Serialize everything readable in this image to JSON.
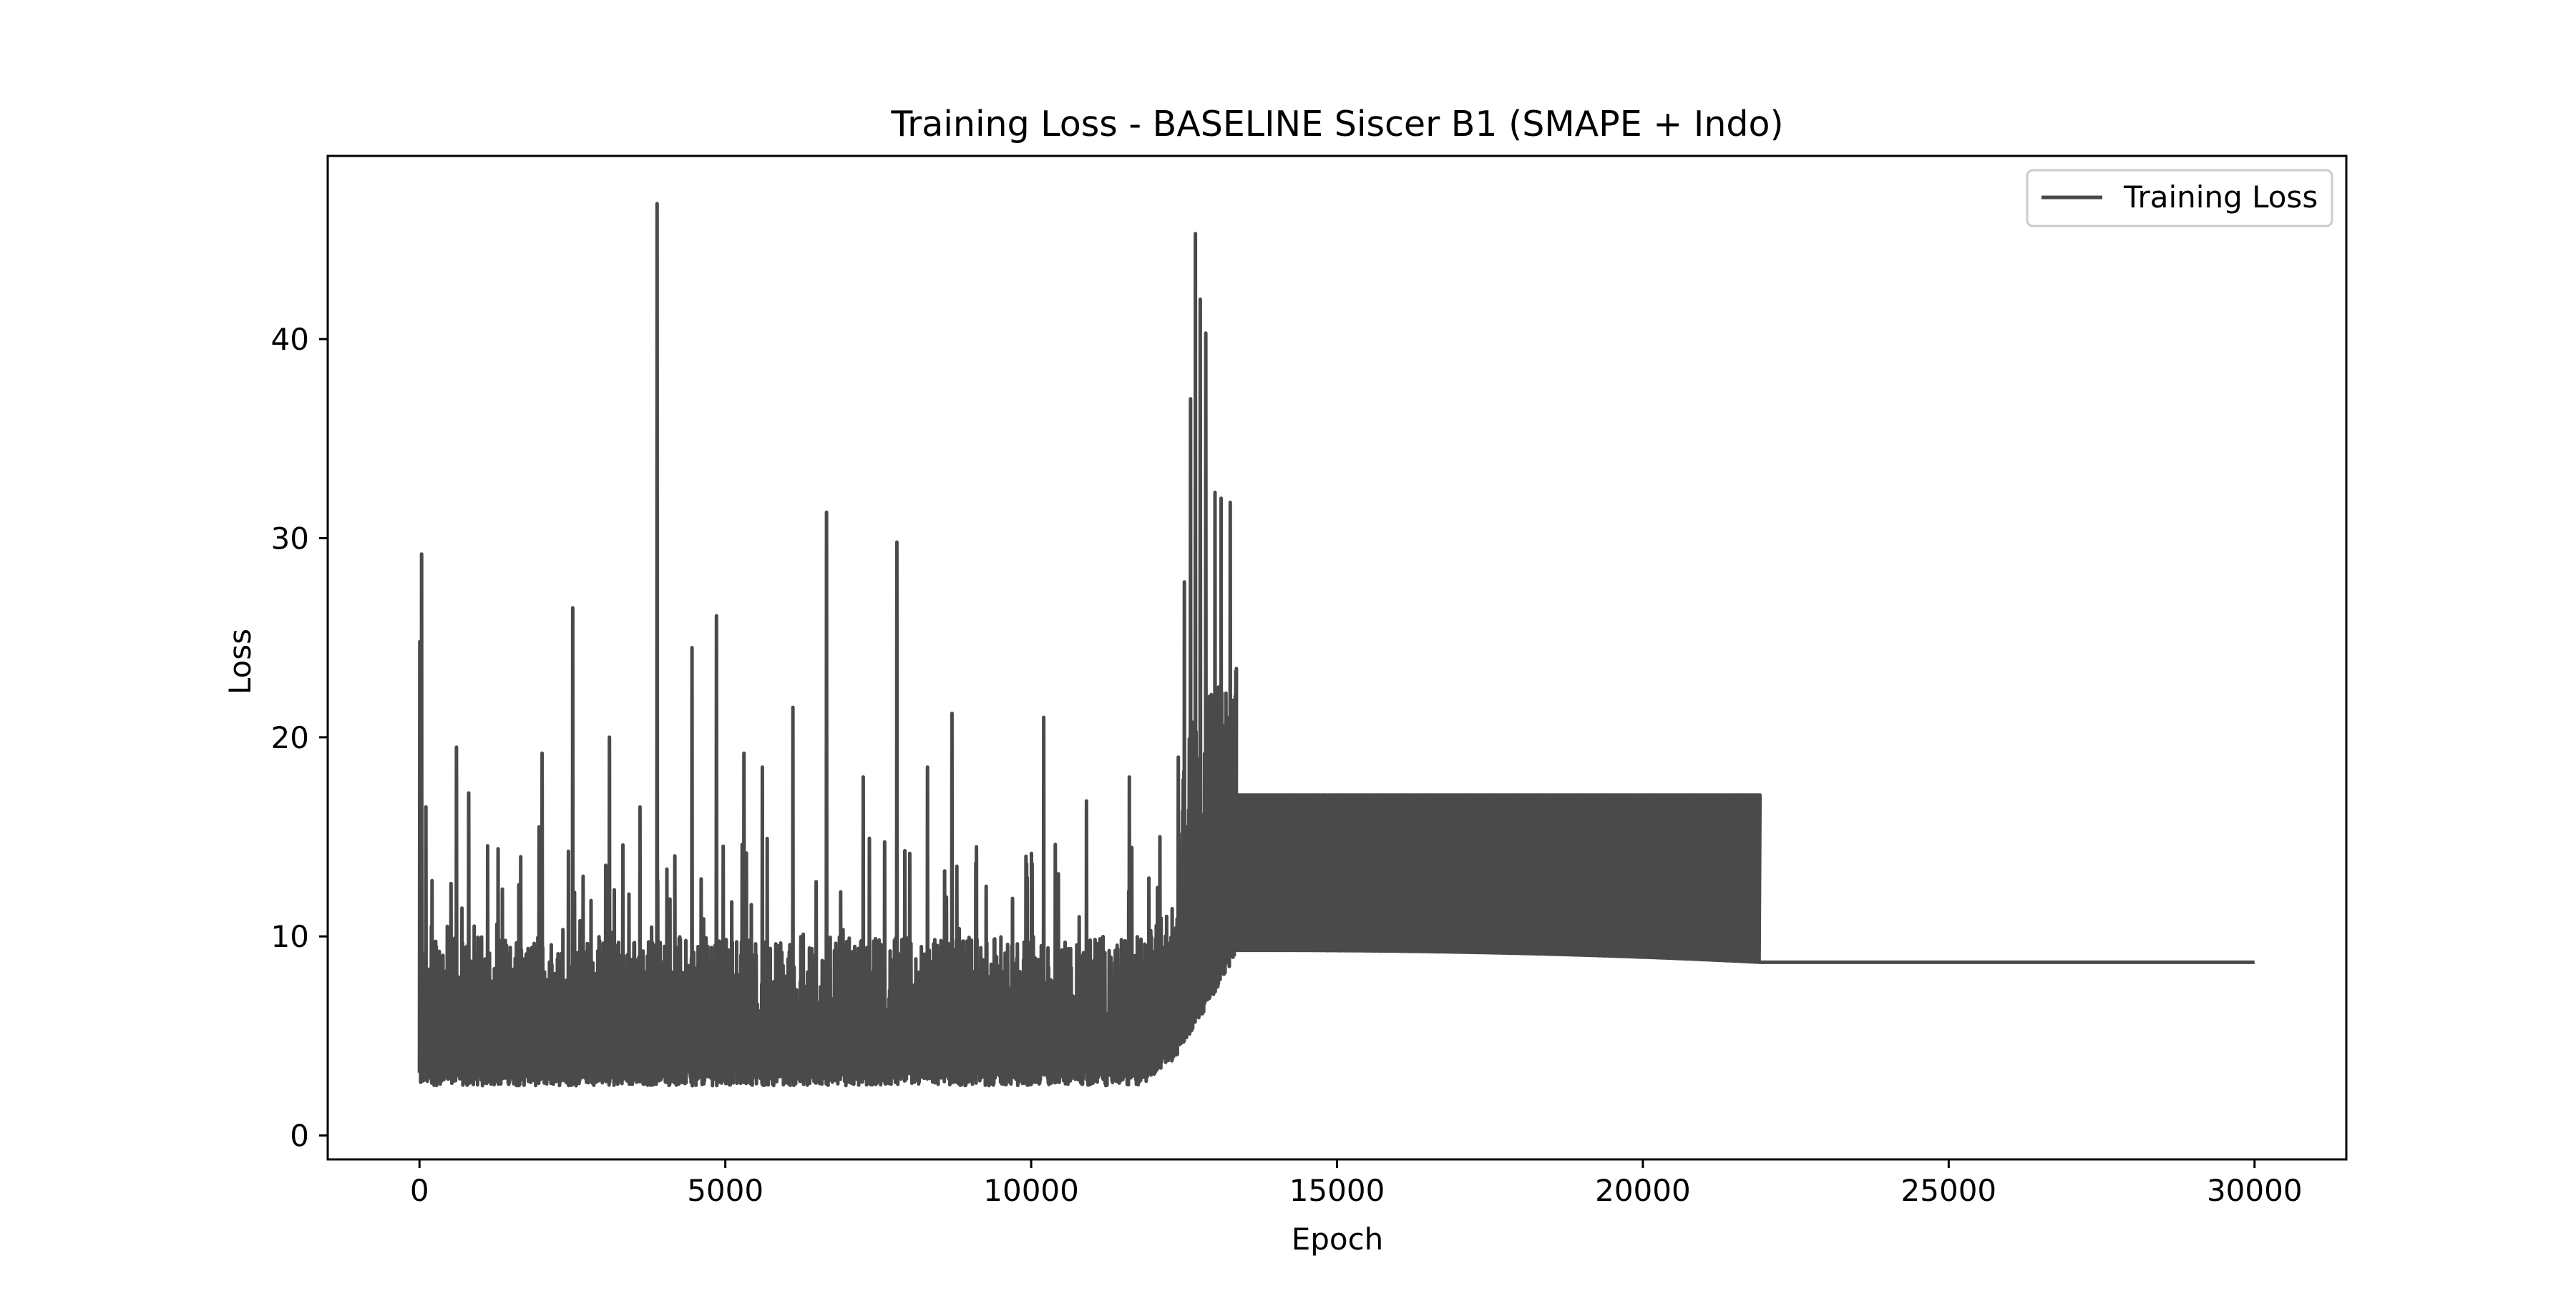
{
  "chart_data": {
    "type": "line",
    "title": "Training Loss - BASELINE Siscer B1 (SMAPE + Indo)",
    "xlabel": "Epoch",
    "ylabel": "Loss",
    "xlim": [
      -1500,
      31500
    ],
    "ylim": [
      -1.2,
      49.2
    ],
    "xticks": [
      0,
      5000,
      10000,
      15000,
      20000,
      25000,
      30000
    ],
    "yticks": [
      0,
      10,
      20,
      30,
      40
    ],
    "grid": false,
    "legend": {
      "position": "top-right",
      "entries": [
        "Training Loss"
      ]
    },
    "colors": {
      "line": "#4a4a4a",
      "axes": "#000000",
      "background": "#ffffff"
    },
    "series": [
      {
        "name": "Training Loss",
        "description_points": {
          "phase1_epoch_range": [
            0,
            12400
          ],
          "phase1_base_band": [
            2.5,
            8.0
          ],
          "spikes": [
            {
              "x": 0,
              "y": 24.8
            },
            {
              "x": 30,
              "y": 29.2
            },
            {
              "x": 100,
              "y": 16.5
            },
            {
              "x": 200,
              "y": 12.8
            },
            {
              "x": 450,
              "y": 10.5
            },
            {
              "x": 600,
              "y": 19.5
            },
            {
              "x": 800,
              "y": 17.2
            },
            {
              "x": 1650,
              "y": 14.0
            },
            {
              "x": 1950,
              "y": 15.5
            },
            {
              "x": 2000,
              "y": 19.2
            },
            {
              "x": 2500,
              "y": 26.5
            },
            {
              "x": 2800,
              "y": 11.8
            },
            {
              "x": 3100,
              "y": 20.0
            },
            {
              "x": 3600,
              "y": 16.5
            },
            {
              "x": 3880,
              "y": 46.8
            },
            {
              "x": 4450,
              "y": 24.5
            },
            {
              "x": 4850,
              "y": 26.1
            },
            {
              "x": 5300,
              "y": 19.2
            },
            {
              "x": 5600,
              "y": 18.5
            },
            {
              "x": 6100,
              "y": 21.5
            },
            {
              "x": 6650,
              "y": 31.3
            },
            {
              "x": 7250,
              "y": 18.0
            },
            {
              "x": 7800,
              "y": 29.8
            },
            {
              "x": 8300,
              "y": 18.5
            },
            {
              "x": 8700,
              "y": 21.2
            },
            {
              "x": 9100,
              "y": 14.5
            },
            {
              "x": 10200,
              "y": 21.0
            },
            {
              "x": 10900,
              "y": 16.8
            },
            {
              "x": 11600,
              "y": 18.0
            },
            {
              "x": 12100,
              "y": 15.0
            }
          ],
          "transition_spikes": [
            {
              "x": 12400,
              "y": 19.0
            },
            {
              "x": 12500,
              "y": 27.8
            },
            {
              "x": 12600,
              "y": 37.0
            },
            {
              "x": 12680,
              "y": 45.3
            },
            {
              "x": 12760,
              "y": 42.0
            },
            {
              "x": 12850,
              "y": 40.3
            },
            {
              "x": 13000,
              "y": 32.3
            },
            {
              "x": 13100,
              "y": 32.0
            },
            {
              "x": 13250,
              "y": 31.8
            },
            {
              "x": 13400,
              "y": 24.5
            }
          ],
          "phase2_band": {
            "x_range": [
              13350,
              21900
            ],
            "upper": 17.1,
            "lower_start": 9.3,
            "lower_end": 8.7
          },
          "phase3_flat": {
            "x_range": [
              21900,
              30000
            ],
            "value": 8.7
          }
        }
      }
    ]
  }
}
